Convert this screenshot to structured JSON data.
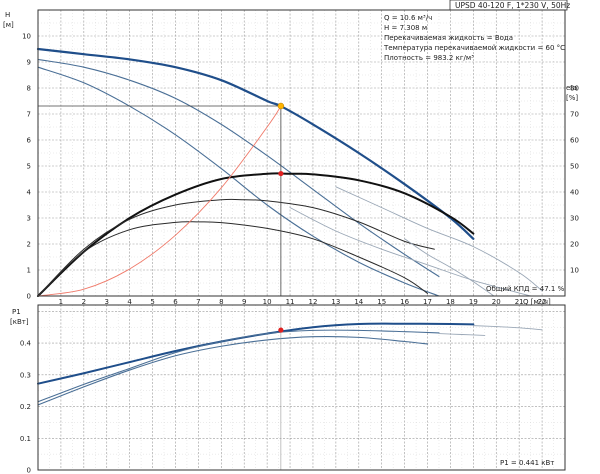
{
  "colors": {
    "frame": "#333333",
    "grid_minor": "#cfcfcf",
    "grid_major": "#9a9a9a",
    "curve_main": "#1f4e8a",
    "curve_thin": "#4a6f96",
    "curve_gray": "#9aa7b6",
    "curve_black": "#111111",
    "efficiency_black": "#2a2a2a",
    "system_curve": "#f07a6a",
    "operating_point": "#ffb400",
    "operating_point_eff": "#e02020",
    "cross_lines": "#444444"
  },
  "chart_data": [
    {
      "type": "line",
      "title": "UPSD 40-120 F, 1*230 V, 50Hz",
      "xlabel": "Q [м³/ч]",
      "ylabel": "H [м]",
      "ylabel_right": "eta [%]",
      "xlim": [
        0,
        23
      ],
      "ylim": [
        0,
        11
      ],
      "ylim_right": [
        0,
        110
      ],
      "x_ticks": [
        1,
        2,
        3,
        4,
        5,
        6,
        7,
        8,
        9,
        10,
        11,
        12,
        13,
        14,
        15,
        16,
        17,
        18,
        19,
        20,
        21,
        22
      ],
      "y_ticks": [
        0,
        1,
        2,
        3,
        4,
        5,
        6,
        7,
        8,
        9,
        10
      ],
      "y_right_ticks": [
        10,
        20,
        30,
        40,
        50,
        60,
        70,
        80
      ],
      "grid": true,
      "legend": "none",
      "info_lines": [
        "Q = 10.6 м³/ч",
        "H = 7.308 м",
        "Перекачиваемая жидкость = Вода",
        "Температура перекачиваемой жидкости = 60 °C",
        "Плотность = 983.2 кг/м³"
      ],
      "footer_note": "Общий КПД = 47.1 %",
      "operating_point": {
        "x": 10.6,
        "y": 7.308
      },
      "efficiency_point": {
        "x": 10.6,
        "eta": 47.1
      },
      "series": [
        {
          "role": "head-speed-3",
          "axis": "left",
          "x": [
            0,
            2,
            4,
            6,
            8,
            10,
            10.6,
            12,
            14,
            16,
            18,
            19
          ],
          "values": [
            9.5,
            9.3,
            9.1,
            8.8,
            8.3,
            7.5,
            7.3,
            6.6,
            5.5,
            4.3,
            3.0,
            2.2
          ]
        },
        {
          "role": "head-speed-2",
          "axis": "left",
          "x": [
            0,
            2,
            4,
            6,
            8,
            10,
            12,
            14,
            16,
            17.5
          ],
          "values": [
            9.1,
            8.8,
            8.3,
            7.6,
            6.6,
            5.4,
            4.1,
            2.8,
            1.6,
            0.75
          ]
        },
        {
          "role": "head-speed-1",
          "axis": "left",
          "x": [
            0,
            2,
            4,
            6,
            8,
            10,
            12,
            14,
            16,
            17.5
          ],
          "values": [
            8.8,
            8.2,
            7.3,
            6.2,
            4.9,
            3.5,
            2.3,
            1.3,
            0.5,
            0.0
          ]
        },
        {
          "role": "head-ext-1",
          "axis": "left",
          "x": [
            11,
            13,
            15,
            17,
            19,
            21.5
          ],
          "values": [
            3.4,
            2.5,
            1.8,
            1.2,
            0.6,
            0.0
          ]
        },
        {
          "role": "head-ext-2",
          "axis": "left",
          "x": [
            13,
            15,
            17,
            19,
            21,
            22
          ],
          "values": [
            4.2,
            3.4,
            2.6,
            1.9,
            0.9,
            0.2
          ]
        },
        {
          "role": "eta-speed-3",
          "axis": "right",
          "x": [
            0,
            2,
            4,
            6,
            8,
            10,
            11,
            12,
            14,
            16,
            18,
            19
          ],
          "values": [
            0,
            17,
            30,
            39,
            45,
            47,
            47,
            46.8,
            44.5,
            39.5,
            30.5,
            24
          ]
        },
        {
          "role": "eta-speed-2",
          "axis": "right",
          "x": [
            0,
            2,
            4,
            6,
            8,
            9,
            10,
            12,
            14,
            16,
            17.3
          ],
          "values": [
            0,
            18,
            29.5,
            35,
            37,
            37,
            36.6,
            34,
            28.5,
            21,
            18
          ]
        },
        {
          "role": "eta-speed-1",
          "axis": "right",
          "x": [
            0,
            2,
            4,
            6,
            7,
            8,
            10,
            12,
            14,
            16,
            17
          ],
          "values": [
            0,
            17,
            25.5,
            28.3,
            28.5,
            28.2,
            26,
            22,
            15,
            7,
            1
          ]
        },
        {
          "role": "eta-ext",
          "axis": "right",
          "x": [
            16,
            17,
            18,
            19,
            19.9
          ],
          "values": [
            22,
            16,
            11,
            5.5,
            0
          ]
        },
        {
          "role": "system-curve",
          "axis": "left",
          "x": [
            0,
            2,
            4,
            6,
            8,
            10,
            10.6
          ],
          "values": [
            0,
            0.26,
            1.04,
            2.34,
            4.16,
            6.5,
            7.3
          ]
        }
      ]
    },
    {
      "type": "line",
      "title": "",
      "xlabel": "",
      "ylabel": "P1 [кВт]",
      "xlim": [
        0,
        23
      ],
      "ylim": [
        0,
        0.52
      ],
      "y_ticks": [
        0.0,
        0.1,
        0.2,
        0.3,
        0.4
      ],
      "y_tick_labels": [
        "0",
        "0.1",
        "0.2",
        "0.3",
        "0.4"
      ],
      "grid": true,
      "legend": "none",
      "footer_note": "P1 = 0.441 кВт",
      "operating_point": {
        "x": 10.6,
        "y": 0.441
      },
      "series": [
        {
          "role": "p1-speed-3",
          "x": [
            0,
            2,
            4,
            6,
            8,
            10,
            12,
            14,
            16,
            18,
            19
          ],
          "values": [
            0.272,
            0.305,
            0.34,
            0.375,
            0.405,
            0.43,
            0.45,
            0.46,
            0.461,
            0.46,
            0.459
          ]
        },
        {
          "role": "p1-speed-2",
          "x": [
            0,
            2,
            4,
            6,
            8,
            10,
            12,
            14,
            16,
            17.5
          ],
          "values": [
            0.215,
            0.27,
            0.32,
            0.37,
            0.405,
            0.43,
            0.44,
            0.44,
            0.436,
            0.432
          ]
        },
        {
          "role": "p1-speed-1",
          "x": [
            0,
            2,
            4,
            6,
            8,
            10,
            12,
            14,
            16,
            17
          ],
          "values": [
            0.205,
            0.262,
            0.315,
            0.36,
            0.39,
            0.41,
            0.42,
            0.418,
            0.405,
            0.397
          ]
        },
        {
          "role": "p1-ext-1",
          "x": [
            19,
            20,
            21,
            22
          ],
          "values": [
            0.455,
            0.452,
            0.448,
            0.442
          ]
        },
        {
          "role": "p1-ext-2",
          "x": [
            17.5,
            18.5,
            19.5
          ],
          "values": [
            0.43,
            0.427,
            0.424
          ]
        }
      ]
    }
  ]
}
